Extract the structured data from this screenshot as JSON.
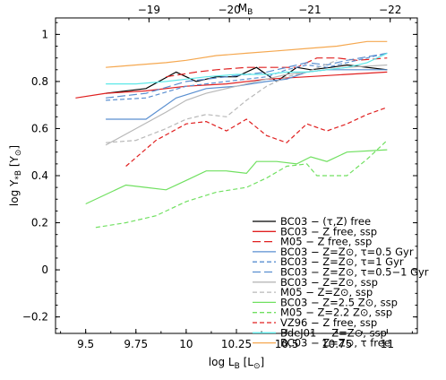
{
  "chart_data": {
    "type": "line",
    "xlabel": "log L",
    "xlabel_sub": "B",
    "xlabel_unit_open": " [L",
    "xlabel_unit_sub": "⊙",
    "xlabel_unit_close": "]",
    "top_xlabel": "M",
    "top_xlabel_sub": "B",
    "ylabel": "log Υ",
    "ylabel_sub": "*B",
    "ylabel_unit_open": " [Υ",
    "ylabel_unit_sub": "⊙",
    "ylabel_unit_close": "]",
    "xlim": [
      9.35,
      11.15
    ],
    "ylim": [
      -0.27,
      1.07
    ],
    "top_axis_ticks": [
      {
        "label": "−19",
        "x": 9.815
      },
      {
        "label": "−20",
        "x": 10.215
      },
      {
        "label": "−21",
        "x": 10.615
      },
      {
        "label": "−22",
        "x": 11.015
      }
    ],
    "xticks": [
      "9.5",
      "9.75",
      "10",
      "10.25",
      "10.5",
      "10.75",
      "11"
    ],
    "xtick_values": [
      9.5,
      9.75,
      10,
      10.25,
      10.5,
      10.75,
      11
    ],
    "yticks": [
      "−0.2",
      "0",
      "0.2",
      "0.4",
      "0.6",
      "0.8",
      "1"
    ],
    "ytick_values": [
      -0.2,
      0,
      0.2,
      0.4,
      0.6,
      0.8,
      1
    ],
    "grid": false,
    "legend_position": "bottom-right",
    "series": [
      {
        "name": "BC03 − (τ,Z) free",
        "color": "#000000",
        "dash": "solid",
        "x": [
          9.6,
          9.8,
          9.95,
          10.05,
          10.15,
          10.25,
          10.35,
          10.45,
          10.55,
          10.62,
          10.72,
          10.8,
          11.0
        ],
        "y": [
          0.75,
          0.77,
          0.84,
          0.8,
          0.82,
          0.82,
          0.86,
          0.8,
          0.86,
          0.85,
          0.86,
          0.87,
          0.85
        ]
      },
      {
        "name": "BC03 − Z free, ssp",
        "color": "#e02020",
        "dash": "solid",
        "x": [
          9.45,
          9.6,
          9.8,
          10.0,
          10.2,
          10.4,
          10.6,
          10.8,
          11.0
        ],
        "y": [
          0.73,
          0.75,
          0.76,
          0.78,
          0.79,
          0.81,
          0.82,
          0.83,
          0.84
        ]
      },
      {
        "name": "M05 − Z free, ssp",
        "color": "#e02020",
        "dash": "longdash",
        "x": [
          9.9,
          10.05,
          10.15,
          10.3,
          10.45,
          10.55,
          10.65,
          10.75,
          10.85,
          11.0
        ],
        "y": [
          0.82,
          0.84,
          0.85,
          0.86,
          0.86,
          0.86,
          0.9,
          0.9,
          0.89,
          0.9
        ]
      },
      {
        "name": "BC03 − Z=Z⊙, τ=0.5 Gyr",
        "color": "#5a8fd0",
        "dash": "solid",
        "x": [
          9.6,
          9.8,
          9.95,
          10.1,
          10.25,
          10.4,
          10.5,
          10.6,
          10.7,
          10.8,
          11.0
        ],
        "y": [
          0.64,
          0.64,
          0.73,
          0.77,
          0.78,
          0.8,
          0.81,
          0.84,
          0.85,
          0.85,
          0.85
        ]
      },
      {
        "name": "BC03 − Z=Z⊙, τ=1 Gyr",
        "color": "#5a8fd0",
        "dash": "dash",
        "x": [
          9.6,
          9.8,
          10.0,
          10.2,
          10.4,
          10.5,
          10.6,
          10.7,
          10.8,
          11.0
        ],
        "y": [
          0.72,
          0.73,
          0.78,
          0.8,
          0.82,
          0.85,
          0.87,
          0.86,
          0.88,
          0.92
        ]
      },
      {
        "name": "BC03 − Z=Z⊙, τ=0.5−1 Gyr",
        "color": "#5a8fd0",
        "dash": "longdash",
        "x": [
          9.6,
          9.8,
          10.0,
          10.2,
          10.4,
          10.5,
          10.6,
          10.7,
          10.8,
          11.0
        ],
        "y": [
          0.73,
          0.75,
          0.8,
          0.82,
          0.84,
          0.86,
          0.88,
          0.87,
          0.89,
          0.92
        ]
      },
      {
        "name": "BC03 − Z=Z⊙, ssp",
        "color": "#b8b8b8",
        "dash": "solid",
        "x": [
          9.6,
          9.75,
          9.9,
          10.0,
          10.1,
          10.2,
          10.3,
          10.4,
          10.5,
          10.6,
          10.7,
          10.8,
          11.0
        ],
        "y": [
          0.53,
          0.6,
          0.67,
          0.72,
          0.75,
          0.77,
          0.79,
          0.81,
          0.83,
          0.84,
          0.85,
          0.86,
          0.87
        ]
      },
      {
        "name": "M05 − Z=Z⊙, ssp",
        "color": "#b8b8b8",
        "dash": "dash",
        "x": [
          9.6,
          9.75,
          9.9,
          10.0,
          10.1,
          10.2,
          10.3,
          10.4,
          10.5,
          10.6,
          10.75
        ],
        "y": [
          0.54,
          0.55,
          0.6,
          0.64,
          0.66,
          0.65,
          0.72,
          0.78,
          0.82,
          0.84,
          0.89
        ]
      },
      {
        "name": "BC03 − Z=2.5 Z⊙, ssp",
        "color": "#70e060",
        "dash": "solid",
        "x": [
          9.5,
          9.6,
          9.7,
          9.8,
          9.9,
          10.0,
          10.1,
          10.2,
          10.3,
          10.35,
          10.45,
          10.55,
          10.62,
          10.7,
          10.8,
          11.0
        ],
        "y": [
          0.28,
          0.32,
          0.36,
          0.35,
          0.34,
          0.38,
          0.42,
          0.42,
          0.41,
          0.46,
          0.46,
          0.45,
          0.48,
          0.46,
          0.5,
          0.51
        ]
      },
      {
        "name": "M05 − Z=2.2 Z⊙, ssp",
        "color": "#70e060",
        "dash": "dash",
        "x": [
          9.55,
          9.7,
          9.85,
          10.0,
          10.15,
          10.3,
          10.4,
          10.5,
          10.6,
          10.65,
          10.8,
          10.9,
          11.0
        ],
        "y": [
          0.18,
          0.2,
          0.23,
          0.29,
          0.33,
          0.35,
          0.39,
          0.44,
          0.45,
          0.4,
          0.4,
          0.47,
          0.55
        ]
      },
      {
        "name": "VZ96 − Z free, ssp",
        "color": "#e02020",
        "dash": "dash",
        "x": [
          9.7,
          9.85,
          10.0,
          10.1,
          10.2,
          10.3,
          10.4,
          10.5,
          10.6,
          10.7,
          10.8,
          10.9,
          11.0
        ],
        "y": [
          0.44,
          0.55,
          0.62,
          0.63,
          0.59,
          0.64,
          0.57,
          0.54,
          0.62,
          0.59,
          0.62,
          0.66,
          0.69
        ]
      },
      {
        "name": "BdeJ01 − Z=Z⊙, ssp",
        "color": "#5ee8e8",
        "dash": "solid",
        "x": [
          9.6,
          9.75,
          9.9,
          10.0,
          10.1,
          10.25,
          10.4,
          10.5,
          10.6,
          10.7,
          10.8,
          10.9,
          11.0
        ],
        "y": [
          0.79,
          0.79,
          0.8,
          0.81,
          0.82,
          0.83,
          0.83,
          0.84,
          0.84,
          0.85,
          0.86,
          0.88,
          0.92
        ]
      },
      {
        "name": "BC03 − Z=Z⊙, τ free",
        "color": "#f5a850",
        "dash": "solid",
        "x": [
          9.6,
          9.75,
          9.9,
          10.0,
          10.15,
          10.3,
          10.45,
          10.6,
          10.75,
          10.9,
          11.0
        ],
        "y": [
          0.86,
          0.87,
          0.88,
          0.89,
          0.91,
          0.92,
          0.93,
          0.94,
          0.95,
          0.97,
          0.97
        ]
      }
    ]
  }
}
